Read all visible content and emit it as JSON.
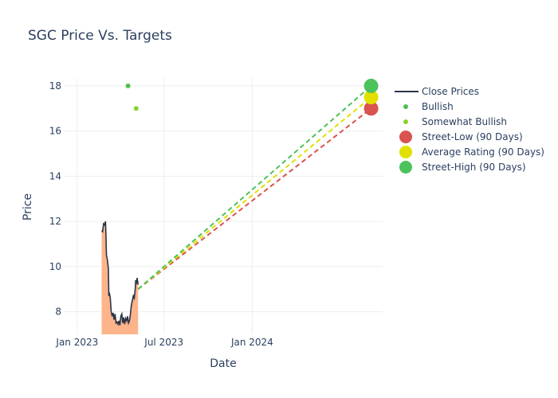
{
  "chart_data": {
    "type": "line",
    "title": "SGC Price Vs. Targets",
    "xlabel": "Date",
    "ylabel": "Price",
    "x_range": [
      "2022-12-04",
      "2024-09-29"
    ],
    "y_range": [
      7.0,
      18.35
    ],
    "x_ticks": [
      {
        "date": "2023-01-01",
        "label": "Jan 2023"
      },
      {
        "date": "2023-07-01",
        "label": "Jul 2023"
      },
      {
        "date": "2024-01-01",
        "label": "Jan 2024"
      }
    ],
    "y_ticks": [
      8,
      10,
      12,
      14,
      16,
      18
    ],
    "grid": true,
    "legend_position": "right",
    "colors": {
      "close": "#2a3547",
      "area": "#fdb48a",
      "bullish": "#4ec04e",
      "somewhat_bullish": "#88d22e",
      "street_low": "#d9534f",
      "average": "#e1e000",
      "street_high": "#4cc25c"
    },
    "series": [
      {
        "name": "Close Prices",
        "kind": "line",
        "points": [
          [
            "2023-02-21",
            11.6
          ],
          [
            "2023-02-23",
            11.55
          ],
          [
            "2023-02-25",
            11.9
          ],
          [
            "2023-02-27",
            11.85
          ],
          [
            "2023-03-01",
            12.0
          ],
          [
            "2023-03-02",
            11.4
          ],
          [
            "2023-03-03",
            10.5
          ],
          [
            "2023-03-05",
            10.3
          ],
          [
            "2023-03-07",
            9.9
          ],
          [
            "2023-03-08",
            8.7
          ],
          [
            "2023-03-09",
            8.85
          ],
          [
            "2023-03-11",
            8.6
          ],
          [
            "2023-03-13",
            8.0
          ],
          [
            "2023-03-15",
            7.8
          ],
          [
            "2023-03-17",
            7.95
          ],
          [
            "2023-03-19",
            7.65
          ],
          [
            "2023-03-21",
            7.9
          ],
          [
            "2023-03-23",
            7.5
          ],
          [
            "2023-03-25",
            7.55
          ],
          [
            "2023-03-27",
            7.45
          ],
          [
            "2023-03-29",
            7.6
          ],
          [
            "2023-03-31",
            7.4
          ],
          [
            "2023-04-02",
            7.8
          ],
          [
            "2023-04-04",
            7.9
          ],
          [
            "2023-04-06",
            7.5
          ],
          [
            "2023-04-08",
            7.75
          ],
          [
            "2023-04-10",
            7.45
          ],
          [
            "2023-04-12",
            7.7
          ],
          [
            "2023-04-14",
            7.6
          ],
          [
            "2023-04-16",
            7.8
          ],
          [
            "2023-04-18",
            7.5
          ],
          [
            "2023-04-20",
            7.6
          ],
          [
            "2023-04-22",
            7.9
          ],
          [
            "2023-04-24",
            8.3
          ],
          [
            "2023-04-26",
            8.5
          ],
          [
            "2023-04-28",
            8.7
          ],
          [
            "2023-04-30",
            8.6
          ],
          [
            "2023-05-02",
            9.0
          ],
          [
            "2023-05-03",
            9.4
          ],
          [
            "2023-05-05",
            9.3
          ],
          [
            "2023-05-06",
            9.5
          ],
          [
            "2023-05-08",
            9.2
          ]
        ]
      },
      {
        "name": "Bullish",
        "kind": "point",
        "points": [
          [
            "2023-04-17",
            18.0
          ]
        ]
      },
      {
        "name": "Somewhat Bullish",
        "kind": "point",
        "points": [
          [
            "2023-05-04",
            17.0
          ]
        ]
      },
      {
        "name": "Street-Low (90 Days)",
        "kind": "target",
        "start": [
          "2023-05-08",
          9.0
        ],
        "end": [
          "2024-09-05",
          17.0
        ]
      },
      {
        "name": "Average Rating (90 Days)",
        "kind": "target",
        "start": [
          "2023-05-08",
          9.0
        ],
        "end": [
          "2024-09-05",
          17.5
        ]
      },
      {
        "name": "Street-High (90 Days)",
        "kind": "target",
        "start": [
          "2023-05-08",
          9.0
        ],
        "end": [
          "2024-09-05",
          18.0
        ]
      }
    ]
  }
}
